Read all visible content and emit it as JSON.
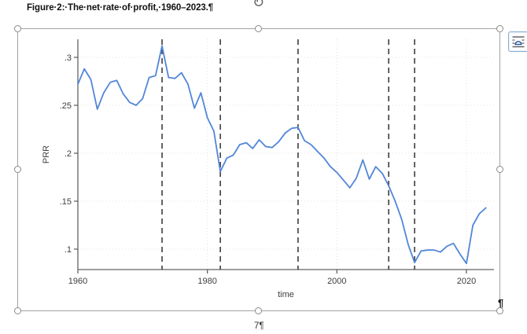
{
  "document": {
    "figure_caption": "Figure·2:·The·net·rate·of·profit,·1960–2023.¶",
    "page_number": "7¶",
    "trailing_paragraph_mark": "¶"
  },
  "icons": {
    "rotate_glyph": "↻",
    "layout_options": "layout-options-icon"
  },
  "chart_data": {
    "type": "line",
    "title": "",
    "xlabel": "time",
    "ylabel": "PRR",
    "xlim": [
      1958.5,
      2024.5
    ],
    "ylim": [
      0.079,
      0.319
    ],
    "grid": true,
    "legend": "none",
    "x_ticks": [
      {
        "v": 1960,
        "label": "1960"
      },
      {
        "v": 1980,
        "label": "1980"
      },
      {
        "v": 2000,
        "label": "2000"
      },
      {
        "v": 2020,
        "label": "2020"
      }
    ],
    "y_ticks": [
      {
        "v": 0.3,
        "label": ".3"
      },
      {
        "v": 0.25,
        "label": ".25"
      },
      {
        "v": 0.2,
        "label": ".2"
      },
      {
        "v": 0.15,
        "label": ".15"
      },
      {
        "v": 0.1,
        "label": ".1"
      }
    ],
    "vlines": [
      1973,
      1982,
      1994,
      2008,
      2012
    ],
    "style": {
      "line_color": "#5186d9",
      "vline_color": "#3d3d3d",
      "grid_color": "#e8e0dd",
      "axis_color": "#636363"
    },
    "series": [
      {
        "name": "PRR",
        "color": "#5186d9",
        "x": [
          1960,
          1961,
          1962,
          1963,
          1964,
          1965,
          1966,
          1967,
          1968,
          1969,
          1970,
          1971,
          1972,
          1973,
          1974,
          1975,
          1976,
          1977,
          1978,
          1979,
          1980,
          1981,
          1982,
          1983,
          1984,
          1985,
          1986,
          1987,
          1988,
          1989,
          1990,
          1991,
          1992,
          1993,
          1994,
          1995,
          1996,
          1997,
          1998,
          1999,
          2000,
          2001,
          2002,
          2003,
          2004,
          2005,
          2006,
          2007,
          2008,
          2009,
          2010,
          2011,
          2012,
          2013,
          2014,
          2015,
          2016,
          2017,
          2018,
          2019,
          2020,
          2021,
          2022,
          2023
        ],
        "y": [
          0.272,
          0.288,
          0.277,
          0.246,
          0.263,
          0.274,
          0.276,
          0.262,
          0.253,
          0.25,
          0.257,
          0.279,
          0.281,
          0.312,
          0.279,
          0.278,
          0.284,
          0.272,
          0.247,
          0.263,
          0.237,
          0.223,
          0.181,
          0.195,
          0.198,
          0.209,
          0.211,
          0.205,
          0.214,
          0.207,
          0.206,
          0.212,
          0.221,
          0.226,
          0.227,
          0.213,
          0.209,
          0.202,
          0.195,
          0.186,
          0.18,
          0.172,
          0.164,
          0.174,
          0.193,
          0.173,
          0.186,
          0.179,
          0.166,
          0.15,
          0.131,
          0.105,
          0.086,
          0.098,
          0.099,
          0.099,
          0.097,
          0.103,
          0.106,
          0.095,
          0.085,
          0.125,
          0.137,
          0.143
        ]
      }
    ]
  }
}
